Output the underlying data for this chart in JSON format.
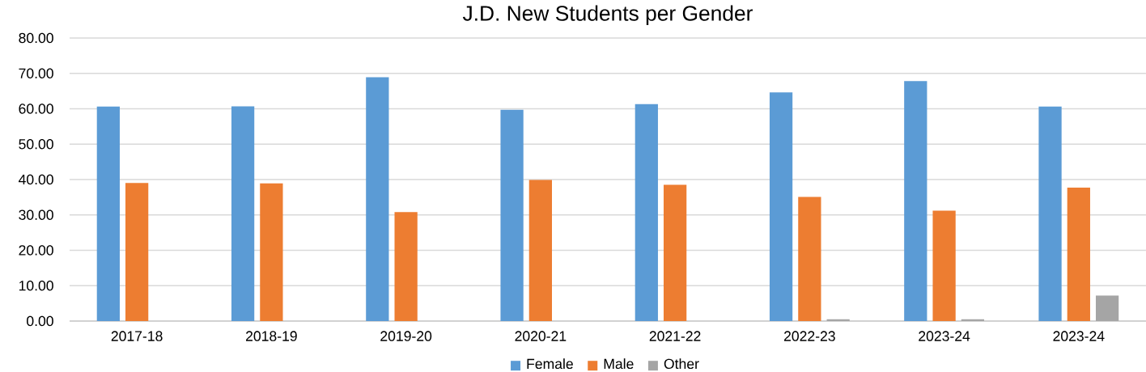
{
  "chart_data": {
    "type": "bar",
    "title": "J.D. New Students per Gender",
    "categories": [
      "2017-18",
      "2018-19",
      "2019-20",
      "2020-21",
      "2021-22",
      "2022-23",
      "2023-24",
      "2023-24"
    ],
    "series": [
      {
        "name": "Female",
        "color": "#5b9bd5",
        "values": [
          60.6,
          60.7,
          68.9,
          59.7,
          61.3,
          64.6,
          67.8,
          60.6
        ]
      },
      {
        "name": "Male",
        "color": "#ed7d31",
        "values": [
          39.0,
          38.9,
          30.8,
          39.9,
          38.5,
          35.1,
          31.2,
          37.7
        ]
      },
      {
        "name": "Other",
        "color": "#a5a5a5",
        "values": [
          0,
          0,
          0,
          0,
          0,
          0.5,
          0.5,
          7.2
        ]
      }
    ],
    "ylim": [
      0,
      80
    ],
    "yticks": [
      {
        "value": 0,
        "label": "0.00"
      },
      {
        "value": 10,
        "label": "10.00"
      },
      {
        "value": 20,
        "label": "20.00"
      },
      {
        "value": 30,
        "label": "30.00"
      },
      {
        "value": 40,
        "label": "40.00"
      },
      {
        "value": 50,
        "label": "50.00"
      },
      {
        "value": 60,
        "label": "60.00"
      },
      {
        "value": 70,
        "label": "70.00"
      },
      {
        "value": 80,
        "label": "80.00"
      }
    ],
    "grid": "y",
    "legend": "bottom"
  }
}
